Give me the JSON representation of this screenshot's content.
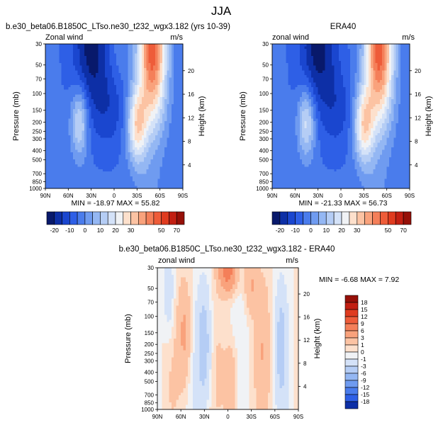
{
  "figure": {
    "title": "JJA",
    "axis_common": {
      "ylabel": "Pressure (mb)",
      "ylabel_right": "Height (km)",
      "left_string": "Zonal wind",
      "right_string": "m/s"
    }
  },
  "chart_data": [
    {
      "type": "heatmap",
      "panel": "model",
      "title": "b.e30_beta06.B1850C_LTso.ne30_t232_wgx3.182 (yrs 10-39)",
      "left_string": "Zonal wind",
      "right_string": "m/s",
      "xlabel": "",
      "ylabel": "Pressure (mb)",
      "ylabel_right": "Height (km)",
      "x_ticks": [
        "90N",
        "60N",
        "30N",
        "0",
        "30S",
        "60S",
        "90S"
      ],
      "y_ticks": [
        "30",
        "50",
        "70",
        "100",
        "150",
        "200",
        "250",
        "300",
        "400",
        "500",
        "700",
        "850",
        "1000"
      ],
      "y_ticks_right": [
        "4",
        "8",
        "12",
        "16",
        "20"
      ],
      "y_scale": "log",
      "stats": "MIN = -18.97   MAX =  55.82",
      "features": [
        {
          "lat": 40,
          "p": 40,
          "value": -18
        },
        {
          "lat": 10,
          "p": 80,
          "value": -15
        },
        {
          "lat": -35,
          "p": 250,
          "value": 35
        },
        {
          "lat": -50,
          "p": 40,
          "value": 55
        },
        {
          "lat": 45,
          "p": 200,
          "value": 20
        }
      ]
    },
    {
      "type": "heatmap",
      "panel": "obs",
      "title": "ERA40",
      "left_string": "zonal wind",
      "right_string": "m/s",
      "xlabel": "",
      "ylabel": "Pressure (mb)",
      "ylabel_right": "Height (km)",
      "x_ticks": [
        "90N",
        "60N",
        "30N",
        "0",
        "30S",
        "60S",
        "90S"
      ],
      "y_ticks": [
        "30",
        "50",
        "70",
        "100",
        "150",
        "200",
        "250",
        "300",
        "400",
        "500",
        "700",
        "850",
        "1000"
      ],
      "y_ticks_right": [
        "4",
        "8",
        "12",
        "16",
        "20"
      ],
      "y_scale": "log",
      "stats": "MIN = -21.33   MAX =  56.73",
      "features": [
        {
          "lat": 25,
          "p": 35,
          "value": -21
        },
        {
          "lat": 10,
          "p": 80,
          "value": -12
        },
        {
          "lat": -35,
          "p": 200,
          "value": 40
        },
        {
          "lat": -50,
          "p": 40,
          "value": 56
        },
        {
          "lat": 45,
          "p": 200,
          "value": 20
        }
      ]
    },
    {
      "type": "heatmap",
      "panel": "diff",
      "title": "b.e30_beta06.B1850C_LTso.ne30_t232_wgx3.182 - ERA40",
      "left_string": "zonal wind",
      "right_string": "m/s",
      "xlabel": "",
      "ylabel": "Pressure (mb)",
      "ylabel_right": "Height (km)",
      "x_ticks": [
        "90N",
        "60N",
        "30N",
        "0",
        "30S",
        "60S",
        "90S"
      ],
      "y_ticks": [
        "30",
        "50",
        "70",
        "100",
        "150",
        "200",
        "250",
        "300",
        "400",
        "500",
        "700",
        "850",
        "1000"
      ],
      "y_ticks_right": [
        "4",
        "8",
        "12",
        "16",
        "20"
      ],
      "y_scale": "log",
      "stats": "MIN = -6.68   MAX =  7.92",
      "features": [
        {
          "lat": 0,
          "p": 35,
          "value": 7
        },
        {
          "lat": -30,
          "p": 40,
          "value": 4
        },
        {
          "lat": 55,
          "p": 150,
          "value": 3
        },
        {
          "lat": -5,
          "p": 600,
          "value": 3
        },
        {
          "lat": 30,
          "p": 200,
          "value": -4
        }
      ]
    }
  ],
  "colorbars": {
    "top": {
      "orientation": "horizontal",
      "levels": [
        "-20",
        "-10",
        "0",
        "10",
        "20",
        "30",
        "50",
        "70"
      ],
      "colors": [
        "#08196b",
        "#0d2fa6",
        "#1a46cf",
        "#2e5fe6",
        "#4a7cec",
        "#6f9bf0",
        "#94b7f3",
        "#b5cdf5",
        "#d4e2f8",
        "#f0f2f5",
        "#fde0cc",
        "#fcc3a3",
        "#f9a27c",
        "#f47f59",
        "#ee5c39",
        "#df3b1f",
        "#c21f12",
        "#961008"
      ]
    },
    "diff": {
      "orientation": "vertical",
      "levels": [
        "18",
        "15",
        "12",
        "9",
        "6",
        "3",
        "1",
        "0",
        "-1",
        "-3",
        "-6",
        "-9",
        "-12",
        "-15",
        "-18"
      ],
      "colors": [
        "#961008",
        "#c21f12",
        "#df3b1f",
        "#ee5c39",
        "#f47f59",
        "#f9a27c",
        "#fcc3a3",
        "#fde0cc",
        "#f0f2f5",
        "#d4e2f8",
        "#b5cdf5",
        "#94b7f3",
        "#6f9bf0",
        "#4a7cec",
        "#2e5fe6",
        "#0d2fa6"
      ]
    }
  }
}
